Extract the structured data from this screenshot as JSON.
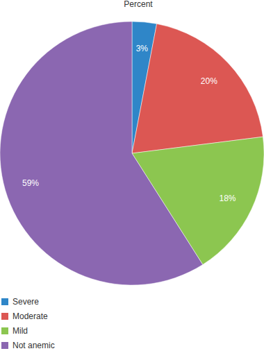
{
  "chart_data": {
    "type": "pie",
    "title": "Percent",
    "categories": [
      "Severe",
      "Moderate",
      "Mild",
      "Not anemic"
    ],
    "values": [
      3,
      20,
      18,
      59
    ],
    "value_labels": [
      "3%",
      "20%",
      "18%",
      "59%"
    ],
    "colors": [
      "#2f86c8",
      "#dc5753",
      "#8cc650",
      "#8b67b1"
    ],
    "data_labels": true,
    "legend": "bottom-left"
  }
}
